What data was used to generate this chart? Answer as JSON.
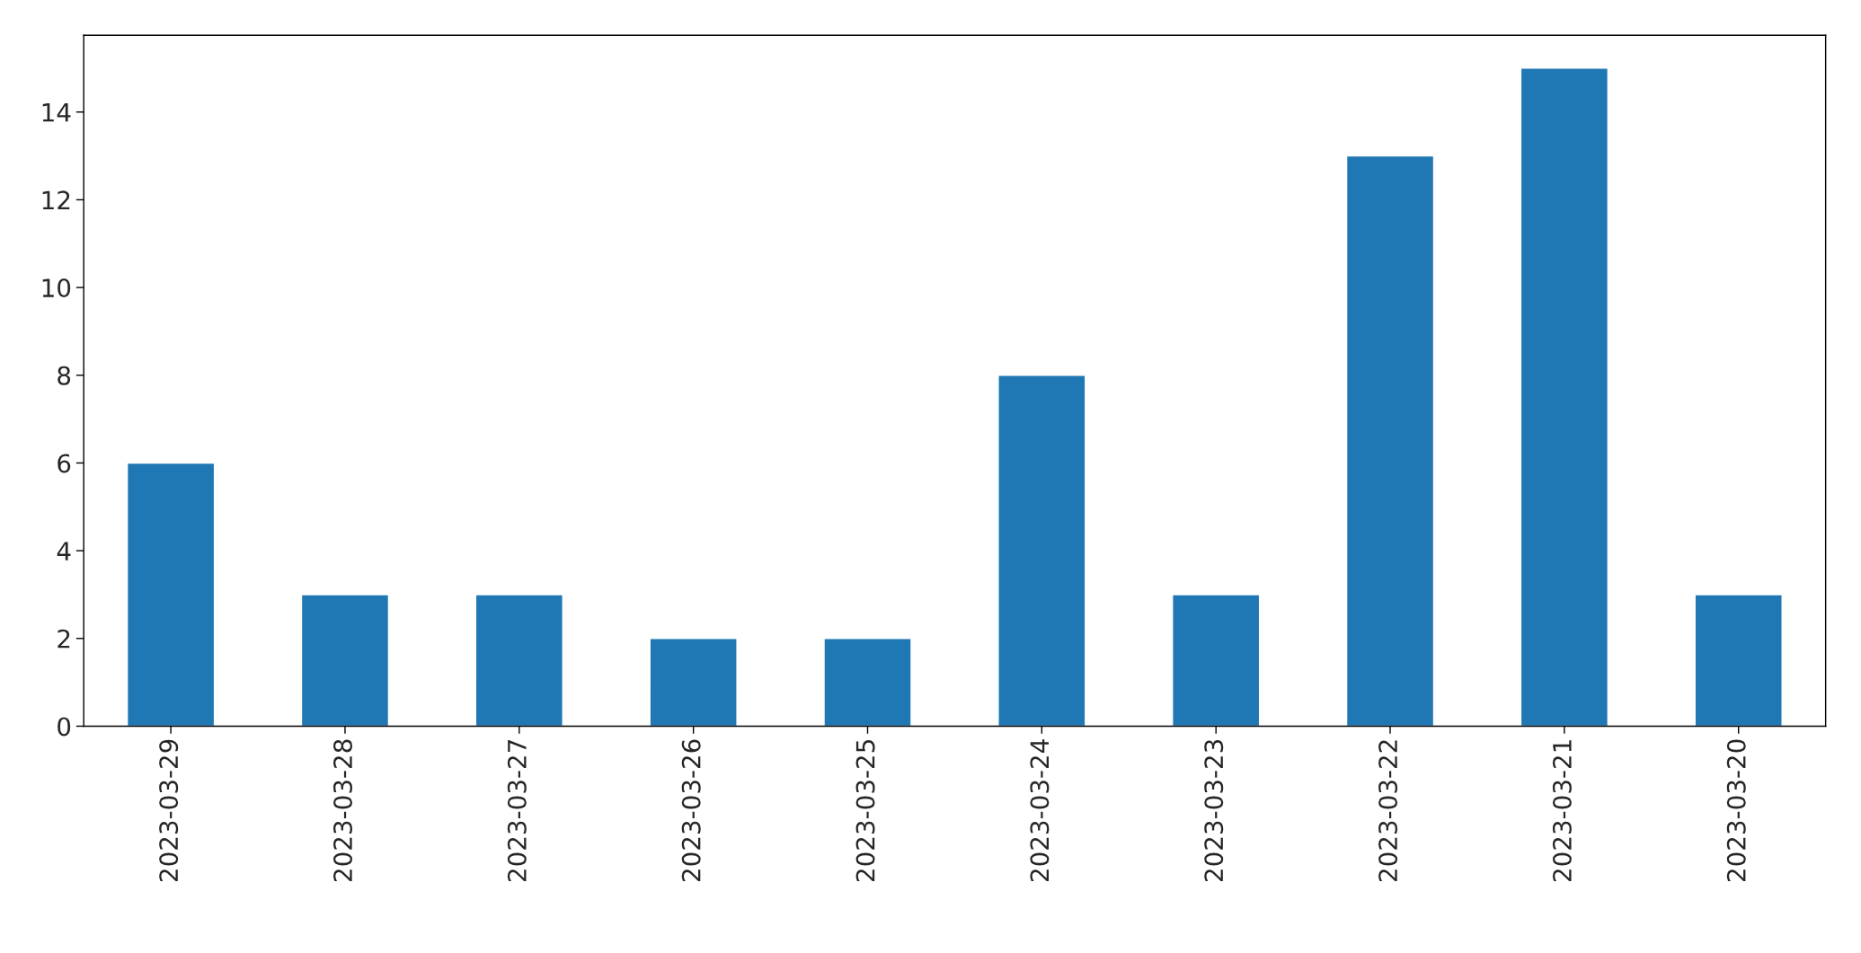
{
  "chart_data": {
    "type": "bar",
    "categories": [
      "2023-03-29",
      "2023-03-28",
      "2023-03-27",
      "2023-03-26",
      "2023-03-25",
      "2023-03-24",
      "2023-03-23",
      "2023-03-22",
      "2023-03-21",
      "2023-03-20"
    ],
    "values": [
      6,
      3,
      3,
      2,
      2,
      8,
      3,
      13,
      15,
      3
    ],
    "color": "#1f77b4",
    "ylim": [
      0,
      15.75
    ],
    "yticks": [
      0,
      2,
      4,
      6,
      8,
      10,
      12,
      14
    ],
    "grid": false,
    "legend": false
  }
}
